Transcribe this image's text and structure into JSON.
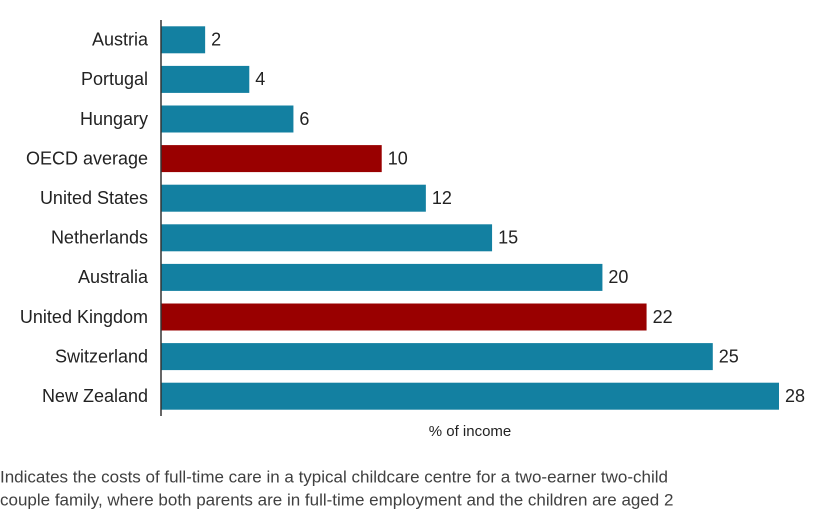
{
  "chart_data": {
    "type": "hbar",
    "categories": [
      "Austria",
      "Portugal",
      "Hungary",
      "OECD average",
      "United States",
      "Netherlands",
      "Australia",
      "United Kingdom",
      "Switzerland",
      "New Zealand"
    ],
    "values": [
      2,
      4,
      6,
      10,
      12,
      15,
      20,
      22,
      25,
      28
    ],
    "colors": [
      "#1380a1",
      "#1380a1",
      "#1380a1",
      "#990000",
      "#1380a1",
      "#1380a1",
      "#1380a1",
      "#990000",
      "#1380a1",
      "#1380a1"
    ],
    "xlim": [
      0,
      28
    ],
    "x_label": "% of income",
    "note": [
      "Indicates the costs of full-time care in a typical childcare centre for a two-earner two-child",
      "couple family, where both parents are in full-time employment and the children are aged 2"
    ]
  }
}
